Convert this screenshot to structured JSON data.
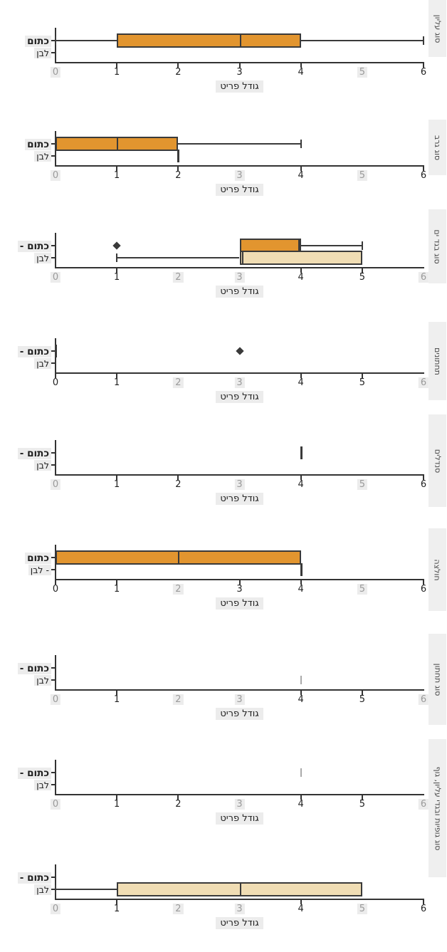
{
  "figure": {
    "xlabel": "גודל פריט",
    "x_ticks": [
      "0",
      "1",
      "2",
      "3",
      "4",
      "5",
      "6"
    ],
    "x_range": [
      0,
      6
    ],
    "y_categories": [
      "כתום",
      "לבן"
    ],
    "colors": {
      "orange_box_fill": "#e2952f",
      "white_box_fill": "#f0ddb4",
      "line": "#3a3a3a",
      "highlight_chip": "#ececec",
      "faint_text": "#9a9a9a",
      "text": "#222222"
    }
  },
  "chart_data": [
    {
      "type": "box",
      "right_label": "סוג עליון",
      "ylabels": [
        "כתום",
        "לבן"
      ],
      "faint_ticks": [
        0,
        5
      ],
      "series": [
        {
          "name": "כתום",
          "whislo": 0,
          "q1": 1,
          "med": 3,
          "q3": 4,
          "whishi": 6
        },
        {
          "name": "לבן"
        }
      ]
    },
    {
      "type": "box",
      "right_label": "סוג גרב",
      "ylabels": [
        "כתום",
        "לבן"
      ],
      "faint_ticks": [
        0,
        3,
        5
      ],
      "series": [
        {
          "name": "כתום",
          "whislo": 0,
          "q1": 0,
          "med": 1,
          "q3": 2,
          "whishi": 4
        },
        {
          "name": "לבן",
          "value": 2
        }
      ]
    },
    {
      "type": "box",
      "right_label": "סוג בגד ים",
      "ylabels": [
        "- כתום",
        "לבן"
      ],
      "faint_ticks": [
        0,
        2,
        3,
        6
      ],
      "series": [
        {
          "name": "כתום",
          "whislo": 3,
          "q1": 3,
          "med": 4,
          "q3": 4,
          "whishi": 5,
          "fliers": [
            1
          ]
        },
        {
          "name": "לבן",
          "whislo": 1,
          "q1": 3,
          "med": 3,
          "q3": 5,
          "whishi": 5
        }
      ]
    },
    {
      "type": "box",
      "right_label": "תחתונים",
      "ylabels": [
        "- כתום",
        "לבן"
      ],
      "faint_ticks": [
        2,
        3,
        6
      ],
      "series": [
        {
          "name": "כתום",
          "value": 0,
          "fliers": [
            3
          ]
        },
        {
          "name": "לבן"
        }
      ]
    },
    {
      "type": "box",
      "right_label": "סנדלים",
      "ylabels": [
        "- כתום",
        "לבן"
      ],
      "faint_ticks": [
        0,
        3,
        5
      ],
      "series": [
        {
          "name": "כתום",
          "value": 4
        },
        {
          "name": "לבן"
        }
      ]
    },
    {
      "type": "box",
      "right_label": "חולצה",
      "ylabels": [
        "כתום",
        "לבן -"
      ],
      "faint_ticks": [
        2,
        5
      ],
      "series": [
        {
          "name": "כתום",
          "whislo": 0,
          "q1": 0,
          "med": 2,
          "q3": 4,
          "whishi": 4
        },
        {
          "name": "לבן",
          "value": 4
        }
      ]
    },
    {
      "type": "box",
      "right_label": "סוג תחתון",
      "ylabels": [
        "- כתום",
        "לבן"
      ],
      "faint_ticks": [
        0,
        2,
        3,
        6
      ],
      "series": [
        {
          "name": "כתום"
        },
        {
          "name": "לבן",
          "value": 4,
          "faint": true
        }
      ]
    },
    {
      "type": "box",
      "right_label": "סוג גופיות ובגדי עליון, גוף",
      "ylabels": [
        "- כתום",
        "לבן"
      ],
      "faint_ticks": [
        0,
        3,
        6
      ],
      "series": [
        {
          "name": "כתום",
          "value": 4,
          "faint": true
        },
        {
          "name": "לבן"
        }
      ]
    },
    {
      "type": "box",
      "right_label": null,
      "ylabels": [
        "- כתום",
        "לבן"
      ],
      "faint_ticks": [
        0,
        2,
        3,
        5
      ],
      "series": [
        {
          "name": "כתום"
        },
        {
          "name": "לבן",
          "whislo": 0,
          "q1": 1,
          "med": 3,
          "q3": 5,
          "whishi": 5
        }
      ]
    }
  ]
}
